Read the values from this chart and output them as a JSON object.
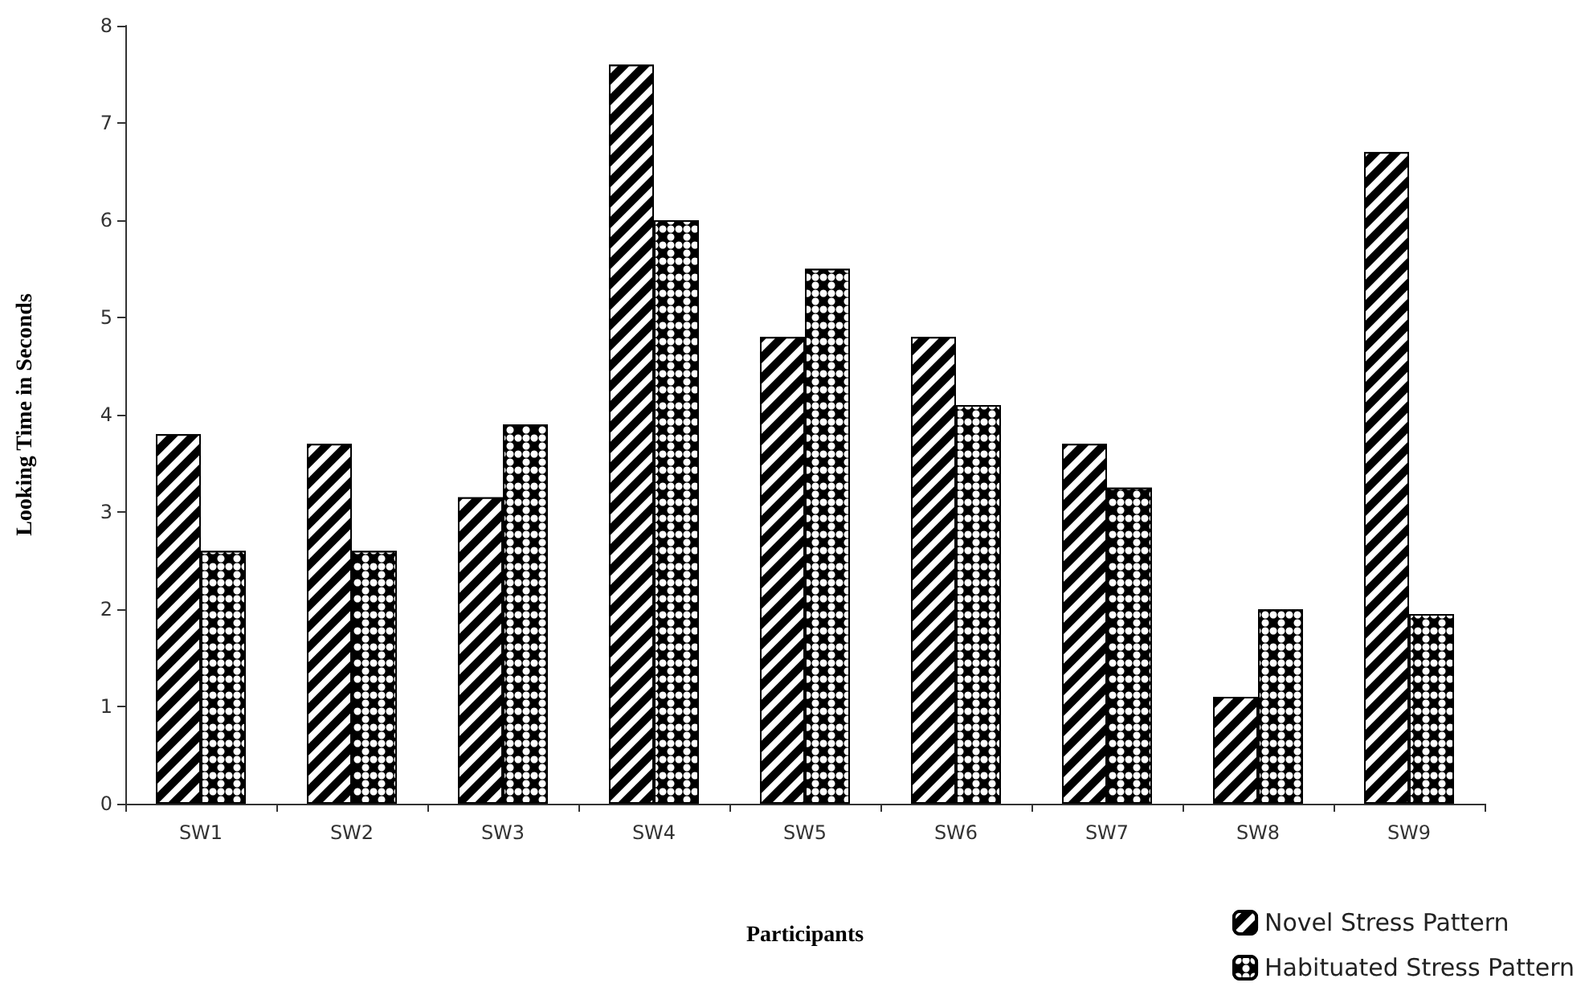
{
  "chart_data": {
    "type": "bar",
    "xlabel": "Participants",
    "ylabel": "Looking Time in Seconds",
    "categories": [
      "SW1",
      "SW2",
      "SW3",
      "SW4",
      "SW5",
      "SW6",
      "SW7",
      "SW8",
      "SW9"
    ],
    "series": [
      {
        "name": "Novel Stress Pattern",
        "color": "#000000",
        "values": [
          3.8,
          3.7,
          3.15,
          7.6,
          4.8,
          4.8,
          3.7,
          1.1,
          6.7
        ]
      },
      {
        "name": "Habituated Stress Pattern",
        "color": "#000000",
        "values": [
          2.6,
          2.6,
          3.9,
          6.0,
          5.5,
          4.1,
          3.25,
          2.0,
          1.95
        ]
      }
    ],
    "ylim": [
      0,
      8
    ],
    "yticks": [
      0,
      1,
      2,
      3,
      4,
      5,
      6,
      7,
      8
    ],
    "grid": false,
    "legend": "bottom right"
  }
}
